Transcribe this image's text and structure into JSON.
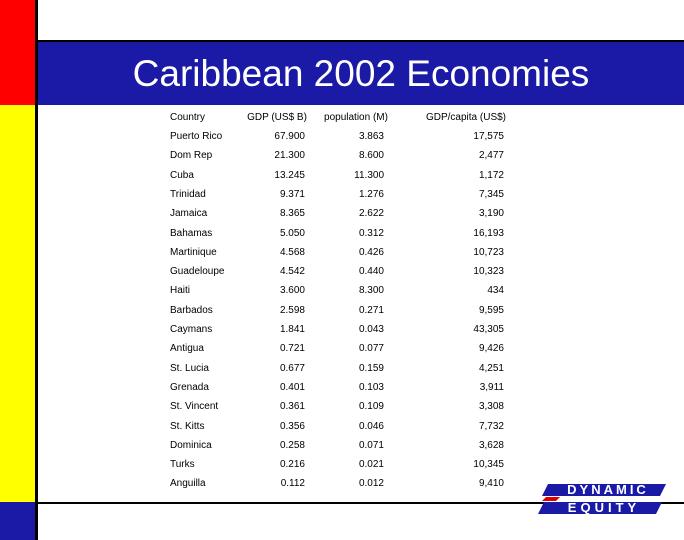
{
  "title": "Caribbean 2002 Economies",
  "table": {
    "header": [
      "Country",
      "GDP (US$ B)",
      "population (M)",
      "GDP/capita (US$)"
    ],
    "rows": [
      [
        "Puerto Rico",
        "67.900",
        "3.863",
        "17,575"
      ],
      [
        "Dom Rep",
        "21.300",
        "8.600",
        "2,477"
      ],
      [
        "Cuba",
        "13.245",
        "11.300",
        "1,172"
      ],
      [
        "Trinidad",
        "9.371",
        "1.276",
        "7,345"
      ],
      [
        "Jamaica",
        "8.365",
        "2.622",
        "3,190"
      ],
      [
        "Bahamas",
        "5.050",
        "0.312",
        "16,193"
      ],
      [
        "Martinique",
        "4.568",
        "0.426",
        "10,723"
      ],
      [
        "Guadeloupe",
        "4.542",
        "0.440",
        "10,323"
      ],
      [
        "Haiti",
        "3.600",
        "8.300",
        "434"
      ],
      [
        "Barbados",
        "2.598",
        "0.271",
        "9,595"
      ],
      [
        "Caymans",
        "1.841",
        "0.043",
        "43,305"
      ],
      [
        "Antigua",
        "0.721",
        "0.077",
        "9,426"
      ],
      [
        "St. Lucia",
        "0.677",
        "0.159",
        "4,251"
      ],
      [
        "Grenada",
        "0.401",
        "0.103",
        "3,911"
      ],
      [
        "St. Vincent",
        "0.361",
        "0.109",
        "3,308"
      ],
      [
        "St. Kitts",
        "0.356",
        "0.046",
        "7,732"
      ],
      [
        "Dominica",
        "0.258",
        "0.071",
        "3,628"
      ],
      [
        "Turks",
        "0.216",
        "0.021",
        "10,345"
      ],
      [
        "Anguilla",
        "0.112",
        "0.012",
        "9,410"
      ]
    ]
  },
  "logo": {
    "line1": "DYNAMIC",
    "line2": "EQUITY"
  }
}
